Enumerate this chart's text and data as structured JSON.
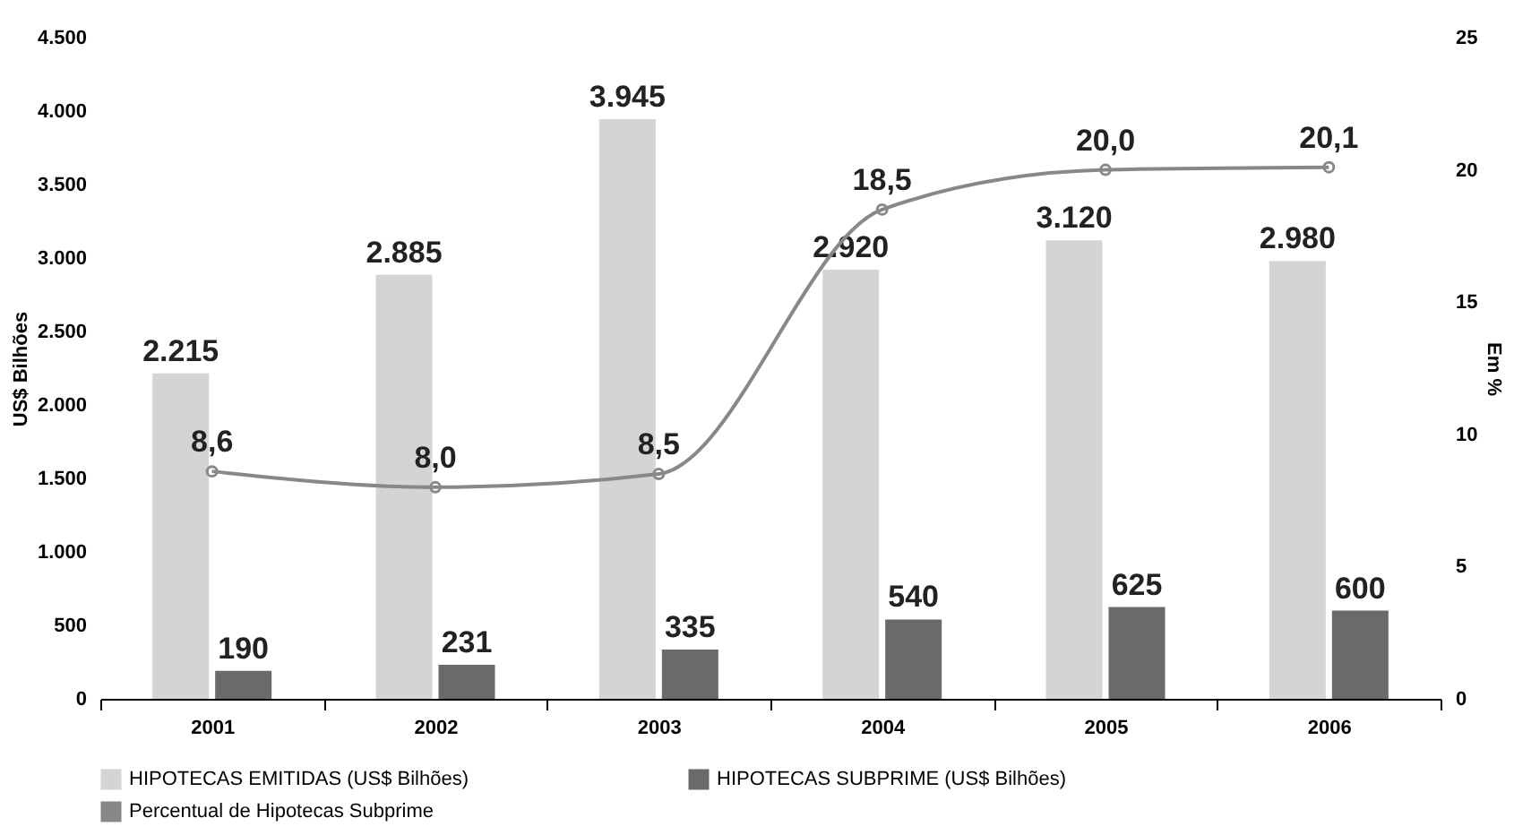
{
  "chart_data": {
    "type": "bar",
    "categories": [
      "2001",
      "2002",
      "2003",
      "2004",
      "2005",
      "2006"
    ],
    "ylabel": "US$ Bilhões",
    "y2label": "Em %",
    "ylim": [
      0,
      4500
    ],
    "yticks": [
      0,
      {
        "value": 500,
        "label": "500"
      },
      {
        "value": 1000,
        "label": "1.000"
      },
      {
        "value": 1500,
        "label": "1.500"
      },
      {
        "value": 2000,
        "label": "2.000"
      },
      {
        "value": 2500,
        "label": "2.500"
      },
      {
        "value": 3000,
        "label": "3.000"
      },
      {
        "value": 3500,
        "label": "3.500"
      },
      {
        "value": 4000,
        "label": "4.000"
      },
      {
        "value": 4500,
        "label": "4.500"
      }
    ],
    "y2lim": [
      0,
      25
    ],
    "y2ticks": [
      0,
      5,
      10,
      15,
      20,
      25
    ],
    "series": [
      {
        "name": "HIPOTECAS EMITIDAS (US$ Bilhões)",
        "color": "#d4d4d4",
        "values": [
          2215,
          2885,
          3945,
          2920,
          3120,
          2980
        ],
        "value_labels": [
          "2.215",
          "2.885",
          "3.945",
          "2.920",
          "3.120",
          "2.980"
        ]
      },
      {
        "name": "HIPOTECAS SUBPRIME (US$ Bilhões)",
        "color": "#6a6a6a",
        "values": [
          190,
          231,
          335,
          540,
          625,
          600
        ],
        "value_labels": [
          "190",
          "231",
          "335",
          "540",
          "625",
          "600"
        ]
      },
      {
        "name": "Percentual de Hipotecas Subprime",
        "type": "line",
        "axis": "y2",
        "color": "#888888",
        "marker": "circle",
        "line_style": "solid",
        "values": [
          8.6,
          8.0,
          8.5,
          18.5,
          20.0,
          20.1
        ],
        "value_labels": [
          "8,6",
          "8,0",
          "8,5",
          "18,5",
          "20,0",
          "20,1"
        ]
      }
    ],
    "grid": false,
    "legend": "bottom"
  }
}
